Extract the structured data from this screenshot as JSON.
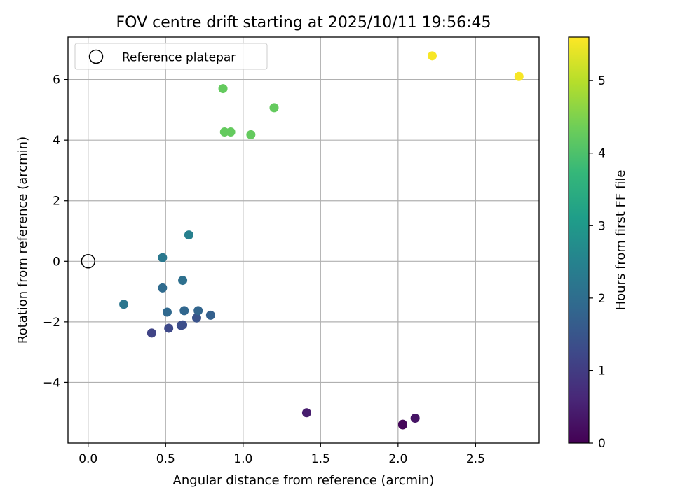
{
  "chart_data": {
    "type": "scatter",
    "title": "FOV centre drift starting at 2025/10/11 19:56:45",
    "xlabel": "Angular distance from reference (arcmin)",
    "ylabel": "Rotation from reference (arcmin)",
    "xlim": [
      -0.13,
      2.91
    ],
    "ylim": [
      -6.0,
      7.4
    ],
    "xticks": [
      0.0,
      0.5,
      1.0,
      1.5,
      2.0,
      2.5
    ],
    "xtick_labels": [
      "0.0",
      "0.5",
      "1.0",
      "1.5",
      "2.0",
      "2.5"
    ],
    "yticks": [
      -4,
      -2,
      0,
      2,
      4,
      6
    ],
    "ytick_labels": [
      "−4",
      "−2",
      "0",
      "2",
      "4",
      "6"
    ],
    "grid": true,
    "legend": {
      "placement": "top-left",
      "entries": [
        {
          "label": "Reference platepar",
          "marker": "open-circle"
        }
      ]
    },
    "reference_point": {
      "x": 0.0,
      "y": 0.0
    },
    "colorbar": {
      "label": "Hours from first FF file",
      "range": [
        0,
        5.6
      ],
      "ticks": [
        0,
        1,
        2,
        3,
        4,
        5
      ],
      "tick_labels": [
        "0",
        "1",
        "2",
        "3",
        "4",
        "5"
      ],
      "colormap": [
        "#440154",
        "#482878",
        "#3e4989",
        "#31688e",
        "#26828e",
        "#1f9e89",
        "#35b779",
        "#6ece58",
        "#b5de2b",
        "#fde725"
      ]
    },
    "series": [
      {
        "name": "FOV centre",
        "points": [
          {
            "x": 2.03,
            "y": -5.4,
            "c": 0.05
          },
          {
            "x": 2.03,
            "y": -5.38,
            "c": 0.1
          },
          {
            "x": 2.11,
            "y": -5.18,
            "c": 0.3
          },
          {
            "x": 1.41,
            "y": -5.0,
            "c": 0.45
          },
          {
            "x": 0.41,
            "y": -2.37,
            "c": 1.15
          },
          {
            "x": 0.52,
            "y": -2.21,
            "c": 1.25
          },
          {
            "x": 0.6,
            "y": -2.12,
            "c": 1.3
          },
          {
            "x": 0.61,
            "y": -2.1,
            "c": 1.35
          },
          {
            "x": 0.7,
            "y": -1.87,
            "c": 1.45
          },
          {
            "x": 0.79,
            "y": -1.78,
            "c": 1.7
          },
          {
            "x": 0.71,
            "y": -1.63,
            "c": 1.8
          },
          {
            "x": 0.62,
            "y": -1.63,
            "c": 1.85
          },
          {
            "x": 0.51,
            "y": -1.68,
            "c": 1.9
          },
          {
            "x": 0.48,
            "y": -0.88,
            "c": 1.95
          },
          {
            "x": 0.61,
            "y": -0.63,
            "c": 2.05
          },
          {
            "x": 0.23,
            "y": -1.42,
            "c": 2.2
          },
          {
            "x": 0.48,
            "y": 0.12,
            "c": 2.25
          },
          {
            "x": 0.65,
            "y": 0.87,
            "c": 2.45
          },
          {
            "x": 0.87,
            "y": 5.7,
            "c": 4.25
          },
          {
            "x": 0.88,
            "y": 4.27,
            "c": 4.25
          },
          {
            "x": 0.92,
            "y": 4.27,
            "c": 4.25
          },
          {
            "x": 1.05,
            "y": 4.18,
            "c": 4.25
          },
          {
            "x": 1.2,
            "y": 5.07,
            "c": 4.25
          },
          {
            "x": 2.22,
            "y": 6.78,
            "c": 5.55
          },
          {
            "x": 2.78,
            "y": 6.1,
            "c": 5.55
          }
        ]
      }
    ]
  }
}
